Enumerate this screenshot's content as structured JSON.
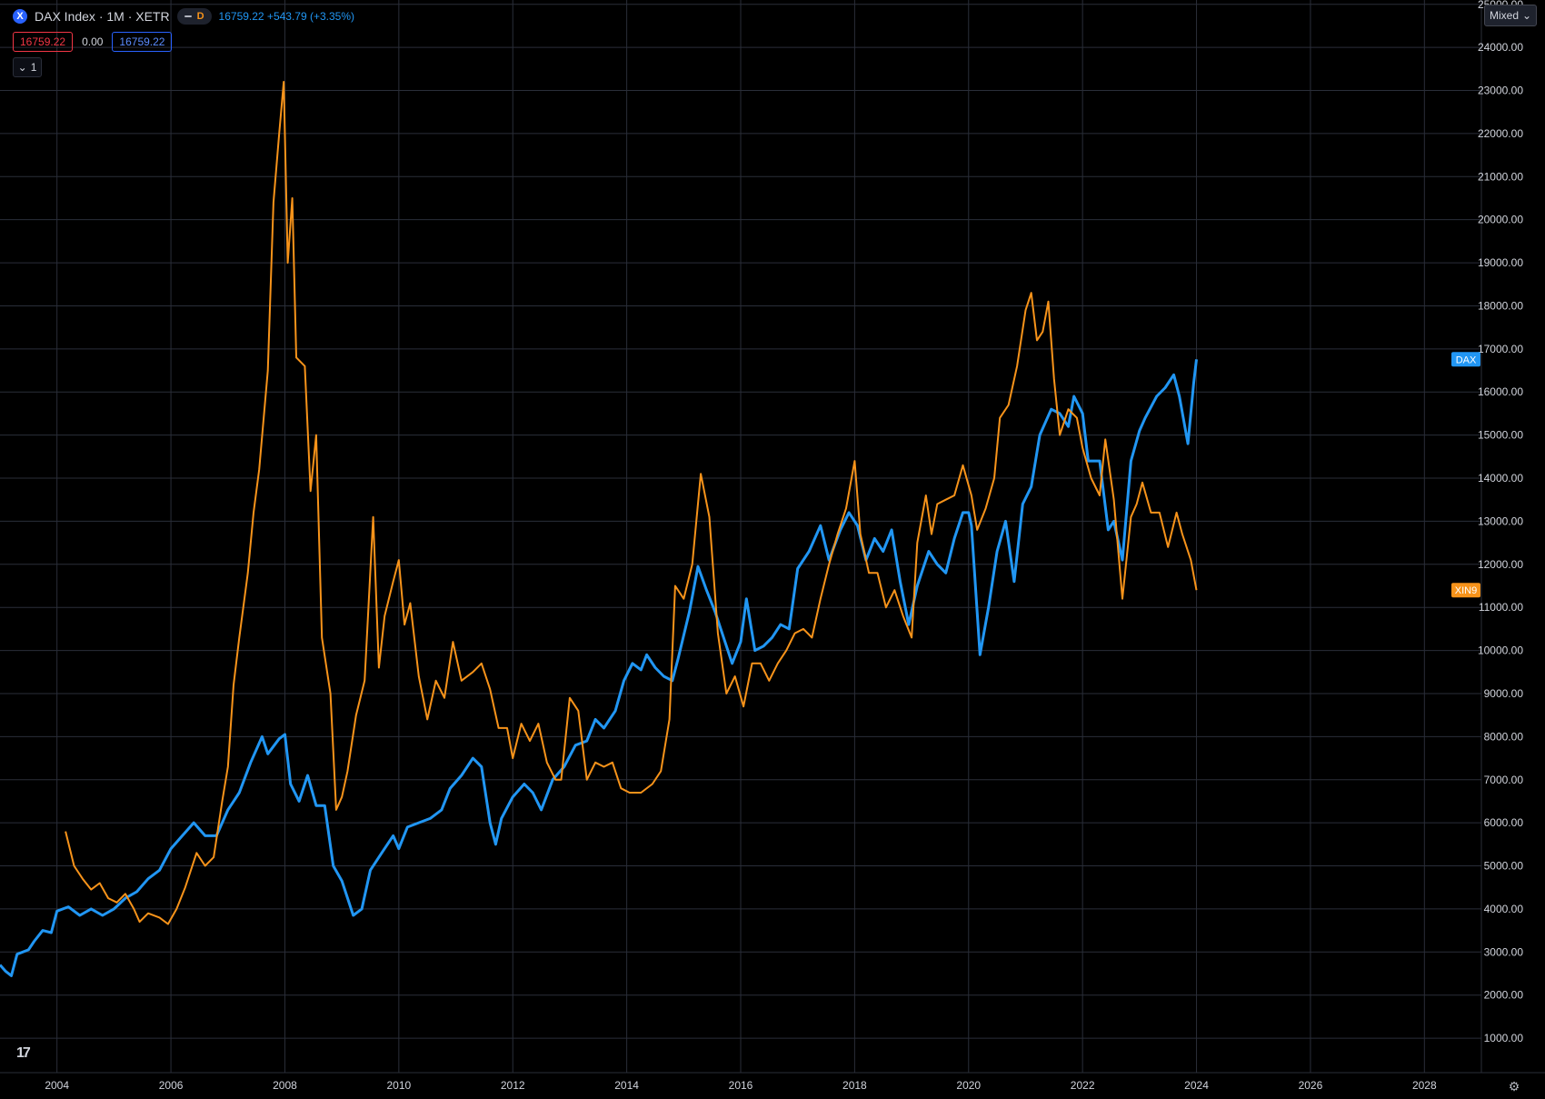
{
  "header": {
    "symbol_icon": "X",
    "title": "DAX Index · 1M · XETR",
    "pill_label": "D",
    "change": "16759.22 +543.79 (+3.35%)",
    "values": [
      "16759.22",
      "0.00",
      "16759.22"
    ],
    "collapse_count": "1"
  },
  "controls": {
    "scale_mode": "Mixed",
    "settings_icon": "gear-icon",
    "logo_icon": "tradingview-logo-icon"
  },
  "colors": {
    "dax": "#2196f3",
    "xin9": "#f7931a",
    "grid": "#2a2e39",
    "axis_text": "#d1d4dc",
    "background": "#000000"
  },
  "chart_data": {
    "type": "line",
    "x_ticks": [
      "2004",
      "2006",
      "2008",
      "2010",
      "2012",
      "2014",
      "2016",
      "2018",
      "2020",
      "2022",
      "2024",
      "2026",
      "2028"
    ],
    "y_ticks": [
      "1000.00",
      "2000.00",
      "3000.00",
      "4000.00",
      "5000.00",
      "6000.00",
      "7000.00",
      "8000.00",
      "9000.00",
      "10000.00",
      "11000.00",
      "12000.00",
      "13000.00",
      "14000.00",
      "15000.00",
      "16000.00",
      "17000.00",
      "18000.00",
      "19000.00",
      "20000.00",
      "21000.00",
      "22000.00",
      "23000.00",
      "24000.00",
      "25000.00"
    ],
    "xlim": [
      2003.0,
      2029.0
    ],
    "ylim": [
      200,
      25100
    ],
    "grid": true,
    "series": [
      {
        "name": "DAX",
        "color": "#2196f3",
        "last_label": "DAX",
        "points": [
          [
            2003.0,
            2700
          ],
          [
            2003.1,
            2550
          ],
          [
            2003.2,
            2450
          ],
          [
            2003.3,
            2950
          ],
          [
            2003.5,
            3050
          ],
          [
            2003.6,
            3250
          ],
          [
            2003.75,
            3500
          ],
          [
            2003.9,
            3450
          ],
          [
            2004.0,
            3950
          ],
          [
            2004.2,
            4050
          ],
          [
            2004.4,
            3850
          ],
          [
            2004.6,
            4000
          ],
          [
            2004.8,
            3850
          ],
          [
            2005.0,
            4000
          ],
          [
            2005.2,
            4250
          ],
          [
            2005.4,
            4400
          ],
          [
            2005.6,
            4700
          ],
          [
            2005.8,
            4900
          ],
          [
            2006.0,
            5400
          ],
          [
            2006.2,
            5700
          ],
          [
            2006.4,
            6000
          ],
          [
            2006.6,
            5700
          ],
          [
            2006.8,
            5700
          ],
          [
            2007.0,
            6300
          ],
          [
            2007.2,
            6700
          ],
          [
            2007.4,
            7400
          ],
          [
            2007.6,
            8000
          ],
          [
            2007.7,
            7600
          ],
          [
            2007.9,
            7950
          ],
          [
            2008.0,
            8050
          ],
          [
            2008.1,
            6900
          ],
          [
            2008.25,
            6500
          ],
          [
            2008.4,
            7100
          ],
          [
            2008.55,
            6400
          ],
          [
            2008.7,
            6400
          ],
          [
            2008.85,
            5000
          ],
          [
            2009.0,
            4650
          ],
          [
            2009.2,
            3850
          ],
          [
            2009.35,
            4000
          ],
          [
            2009.5,
            4900
          ],
          [
            2009.7,
            5300
          ],
          [
            2009.9,
            5700
          ],
          [
            2010.0,
            5400
          ],
          [
            2010.15,
            5900
          ],
          [
            2010.35,
            6000
          ],
          [
            2010.55,
            6100
          ],
          [
            2010.75,
            6300
          ],
          [
            2010.9,
            6800
          ],
          [
            2011.1,
            7100
          ],
          [
            2011.3,
            7500
          ],
          [
            2011.45,
            7300
          ],
          [
            2011.6,
            6000
          ],
          [
            2011.7,
            5500
          ],
          [
            2011.8,
            6100
          ],
          [
            2012.0,
            6600
          ],
          [
            2012.2,
            6900
          ],
          [
            2012.35,
            6700
          ],
          [
            2012.5,
            6300
          ],
          [
            2012.7,
            7000
          ],
          [
            2012.9,
            7300
          ],
          [
            2013.1,
            7800
          ],
          [
            2013.3,
            7900
          ],
          [
            2013.45,
            8400
          ],
          [
            2013.6,
            8200
          ],
          [
            2013.8,
            8600
          ],
          [
            2013.95,
            9300
          ],
          [
            2014.1,
            9700
          ],
          [
            2014.25,
            9550
          ],
          [
            2014.35,
            9900
          ],
          [
            2014.5,
            9600
          ],
          [
            2014.65,
            9400
          ],
          [
            2014.8,
            9300
          ],
          [
            2014.9,
            9800
          ],
          [
            2015.1,
            10900
          ],
          [
            2015.25,
            11950
          ],
          [
            2015.4,
            11400
          ],
          [
            2015.55,
            10900
          ],
          [
            2015.7,
            10300
          ],
          [
            2015.85,
            9700
          ],
          [
            2016.0,
            10200
          ],
          [
            2016.1,
            11200
          ],
          [
            2016.25,
            10000
          ],
          [
            2016.4,
            10100
          ],
          [
            2016.55,
            10300
          ],
          [
            2016.7,
            10600
          ],
          [
            2016.85,
            10500
          ],
          [
            2017.0,
            11900
          ],
          [
            2017.2,
            12300
          ],
          [
            2017.4,
            12900
          ],
          [
            2017.55,
            12100
          ],
          [
            2017.75,
            12800
          ],
          [
            2017.9,
            13200
          ],
          [
            2018.05,
            12900
          ],
          [
            2018.2,
            12100
          ],
          [
            2018.35,
            12600
          ],
          [
            2018.5,
            12300
          ],
          [
            2018.65,
            12800
          ],
          [
            2018.8,
            11600
          ],
          [
            2018.95,
            10600
          ],
          [
            2019.1,
            11500
          ],
          [
            2019.3,
            12300
          ],
          [
            2019.45,
            12000
          ],
          [
            2019.6,
            11800
          ],
          [
            2019.75,
            12600
          ],
          [
            2019.9,
            13200
          ],
          [
            2020.0,
            13200
          ],
          [
            2020.05,
            12900
          ],
          [
            2020.2,
            9900
          ],
          [
            2020.35,
            11000
          ],
          [
            2020.5,
            12300
          ],
          [
            2020.65,
            13000
          ],
          [
            2020.8,
            11600
          ],
          [
            2020.95,
            13400
          ],
          [
            2021.1,
            13800
          ],
          [
            2021.25,
            15000
          ],
          [
            2021.45,
            15600
          ],
          [
            2021.6,
            15500
          ],
          [
            2021.75,
            15200
          ],
          [
            2021.85,
            15900
          ],
          [
            2022.0,
            15500
          ],
          [
            2022.1,
            14400
          ],
          [
            2022.3,
            14400
          ],
          [
            2022.45,
            12800
          ],
          [
            2022.55,
            13000
          ],
          [
            2022.7,
            12100
          ],
          [
            2022.85,
            14400
          ],
          [
            2023.0,
            15100
          ],
          [
            2023.1,
            15400
          ],
          [
            2023.3,
            15900
          ],
          [
            2023.45,
            16100
          ],
          [
            2023.6,
            16400
          ],
          [
            2023.7,
            15900
          ],
          [
            2023.85,
            14800
          ],
          [
            2023.95,
            16200
          ],
          [
            2024.0,
            16759
          ]
        ]
      },
      {
        "name": "XIN9",
        "color": "#f7931a",
        "last_label": "XIN9",
        "points": [
          [
            2004.15,
            5800
          ],
          [
            2004.3,
            5000
          ],
          [
            2004.45,
            4700
          ],
          [
            2004.6,
            4450
          ],
          [
            2004.75,
            4600
          ],
          [
            2004.9,
            4250
          ],
          [
            2005.05,
            4150
          ],
          [
            2005.2,
            4350
          ],
          [
            2005.35,
            4000
          ],
          [
            2005.45,
            3700
          ],
          [
            2005.6,
            3900
          ],
          [
            2005.8,
            3800
          ],
          [
            2005.95,
            3650
          ],
          [
            2006.1,
            4000
          ],
          [
            2006.25,
            4500
          ],
          [
            2006.45,
            5300
          ],
          [
            2006.6,
            5000
          ],
          [
            2006.75,
            5200
          ],
          [
            2006.9,
            6500
          ],
          [
            2007.0,
            7300
          ],
          [
            2007.1,
            9200
          ],
          [
            2007.2,
            10300
          ],
          [
            2007.35,
            11800
          ],
          [
            2007.45,
            13200
          ],
          [
            2007.55,
            14200
          ],
          [
            2007.7,
            16500
          ],
          [
            2007.8,
            20400
          ],
          [
            2007.9,
            22000
          ],
          [
            2007.98,
            23200
          ],
          [
            2008.05,
            19000
          ],
          [
            2008.13,
            20500
          ],
          [
            2008.2,
            16800
          ],
          [
            2008.35,
            16600
          ],
          [
            2008.45,
            13700
          ],
          [
            2008.55,
            15000
          ],
          [
            2008.65,
            10300
          ],
          [
            2008.8,
            9000
          ],
          [
            2008.9,
            6300
          ],
          [
            2009.0,
            6600
          ],
          [
            2009.1,
            7200
          ],
          [
            2009.25,
            8500
          ],
          [
            2009.4,
            9300
          ],
          [
            2009.55,
            13100
          ],
          [
            2009.65,
            9600
          ],
          [
            2009.75,
            10800
          ],
          [
            2009.9,
            11600
          ],
          [
            2010.0,
            12100
          ],
          [
            2010.1,
            10600
          ],
          [
            2010.2,
            11100
          ],
          [
            2010.35,
            9400
          ],
          [
            2010.5,
            8400
          ],
          [
            2010.65,
            9300
          ],
          [
            2010.8,
            8900
          ],
          [
            2010.95,
            10200
          ],
          [
            2011.1,
            9300
          ],
          [
            2011.3,
            9500
          ],
          [
            2011.45,
            9700
          ],
          [
            2011.6,
            9100
          ],
          [
            2011.75,
            8200
          ],
          [
            2011.9,
            8200
          ],
          [
            2012.0,
            7500
          ],
          [
            2012.15,
            8300
          ],
          [
            2012.3,
            7900
          ],
          [
            2012.45,
            8300
          ],
          [
            2012.6,
            7400
          ],
          [
            2012.75,
            7000
          ],
          [
            2012.85,
            7000
          ],
          [
            2013.0,
            8900
          ],
          [
            2013.15,
            8600
          ],
          [
            2013.3,
            7000
          ],
          [
            2013.45,
            7400
          ],
          [
            2013.6,
            7300
          ],
          [
            2013.75,
            7400
          ],
          [
            2013.9,
            6800
          ],
          [
            2014.05,
            6700
          ],
          [
            2014.25,
            6700
          ],
          [
            2014.45,
            6900
          ],
          [
            2014.6,
            7200
          ],
          [
            2014.75,
            8400
          ],
          [
            2014.85,
            11500
          ],
          [
            2015.0,
            11200
          ],
          [
            2015.15,
            12000
          ],
          [
            2015.3,
            14100
          ],
          [
            2015.45,
            13100
          ],
          [
            2015.6,
            10400
          ],
          [
            2015.75,
            9000
          ],
          [
            2015.9,
            9400
          ],
          [
            2016.05,
            8700
          ],
          [
            2016.2,
            9700
          ],
          [
            2016.35,
            9700
          ],
          [
            2016.5,
            9300
          ],
          [
            2016.65,
            9700
          ],
          [
            2016.8,
            10000
          ],
          [
            2016.95,
            10400
          ],
          [
            2017.1,
            10500
          ],
          [
            2017.25,
            10300
          ],
          [
            2017.4,
            11200
          ],
          [
            2017.55,
            12000
          ],
          [
            2017.7,
            12700
          ],
          [
            2017.85,
            13300
          ],
          [
            2018.0,
            14400
          ],
          [
            2018.1,
            12700
          ],
          [
            2018.25,
            11800
          ],
          [
            2018.4,
            11800
          ],
          [
            2018.55,
            11000
          ],
          [
            2018.7,
            11400
          ],
          [
            2018.85,
            10800
          ],
          [
            2019.0,
            10300
          ],
          [
            2019.1,
            12500
          ],
          [
            2019.25,
            13600
          ],
          [
            2019.35,
            12700
          ],
          [
            2019.45,
            13400
          ],
          [
            2019.6,
            13500
          ],
          [
            2019.75,
            13600
          ],
          [
            2019.9,
            14300
          ],
          [
            2020.05,
            13600
          ],
          [
            2020.15,
            12800
          ],
          [
            2020.3,
            13300
          ],
          [
            2020.45,
            14000
          ],
          [
            2020.55,
            15400
          ],
          [
            2020.7,
            15700
          ],
          [
            2020.85,
            16600
          ],
          [
            2021.0,
            17900
          ],
          [
            2021.1,
            18300
          ],
          [
            2021.2,
            17200
          ],
          [
            2021.3,
            17400
          ],
          [
            2021.4,
            18100
          ],
          [
            2021.5,
            16300
          ],
          [
            2021.6,
            15000
          ],
          [
            2021.75,
            15600
          ],
          [
            2021.9,
            15400
          ],
          [
            2022.0,
            14700
          ],
          [
            2022.15,
            14000
          ],
          [
            2022.3,
            13600
          ],
          [
            2022.4,
            14900
          ],
          [
            2022.55,
            13500
          ],
          [
            2022.7,
            11200
          ],
          [
            2022.85,
            13100
          ],
          [
            2022.95,
            13400
          ],
          [
            2023.05,
            13900
          ],
          [
            2023.2,
            13200
          ],
          [
            2023.35,
            13200
          ],
          [
            2023.5,
            12400
          ],
          [
            2023.65,
            13200
          ],
          [
            2023.75,
            12700
          ],
          [
            2023.9,
            12100
          ],
          [
            2024.0,
            11400
          ]
        ]
      }
    ]
  }
}
